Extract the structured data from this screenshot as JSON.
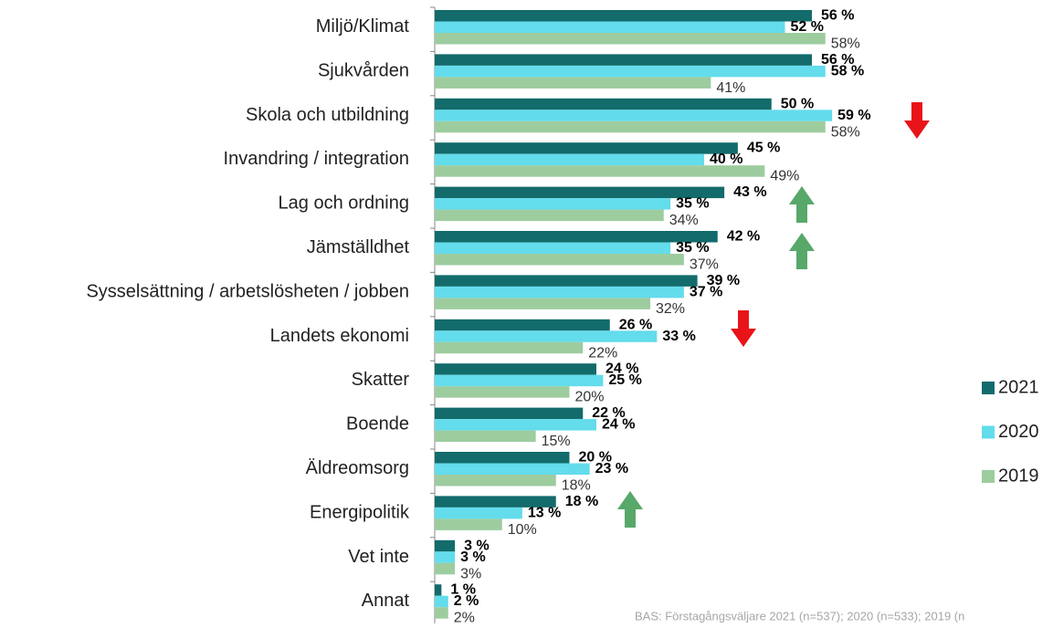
{
  "chart_data": {
    "type": "bar",
    "orientation": "horizontal",
    "categories": [
      "Miljö/Klimat",
      "Sjukvården",
      "Skola och utbildning",
      "Invandring / integration",
      "Lag och ordning",
      "Jämställdhet",
      "Sysselsättning / arbetslösheten / jobben",
      "Landets ekonomi",
      "Skatter",
      "Boende",
      "Äldreomsorg",
      "Energipolitik",
      "Vet inte",
      "Annat"
    ],
    "series": [
      {
        "name": "2021",
        "color": "#136b6b",
        "values": [
          56,
          56,
          50,
          45,
          43,
          42,
          39,
          26,
          24,
          22,
          20,
          18,
          3,
          1
        ],
        "value_labels": [
          "56 %",
          "56 %",
          "50 %",
          "45 %",
          "43 %",
          "42 %",
          "39 %",
          "26 %",
          "24 %",
          "22 %",
          "20 %",
          "18 %",
          "3 %",
          "1 %"
        ]
      },
      {
        "name": "2020",
        "color": "#63dcec",
        "values": [
          52,
          58,
          59,
          40,
          35,
          35,
          37,
          33,
          25,
          24,
          23,
          13,
          3,
          2
        ],
        "value_labels": [
          "52 %",
          "58 %",
          "59 %",
          "40 %",
          "35 %",
          "35 %",
          "37 %",
          "33 %",
          "25 %",
          "24 %",
          "23 %",
          "13 %",
          "3 %",
          "2 %"
        ]
      },
      {
        "name": "2019",
        "color": "#9dcc9f",
        "values": [
          58,
          41,
          58,
          49,
          34,
          37,
          32,
          22,
          20,
          15,
          18,
          10,
          3,
          2
        ],
        "value_labels": [
          "58%",
          "41%",
          "58%",
          "49%",
          "34%",
          "37%",
          "32%",
          "22%",
          "20%",
          "15%",
          "18%",
          "10%",
          "3%",
          "2%"
        ]
      }
    ],
    "xlim": [
      0,
      80
    ],
    "legend": "right",
    "footnote": "BAS: Förstagångsväljare 2021 (n=537); 2020 (n=533); 2019 (n"
  }
}
